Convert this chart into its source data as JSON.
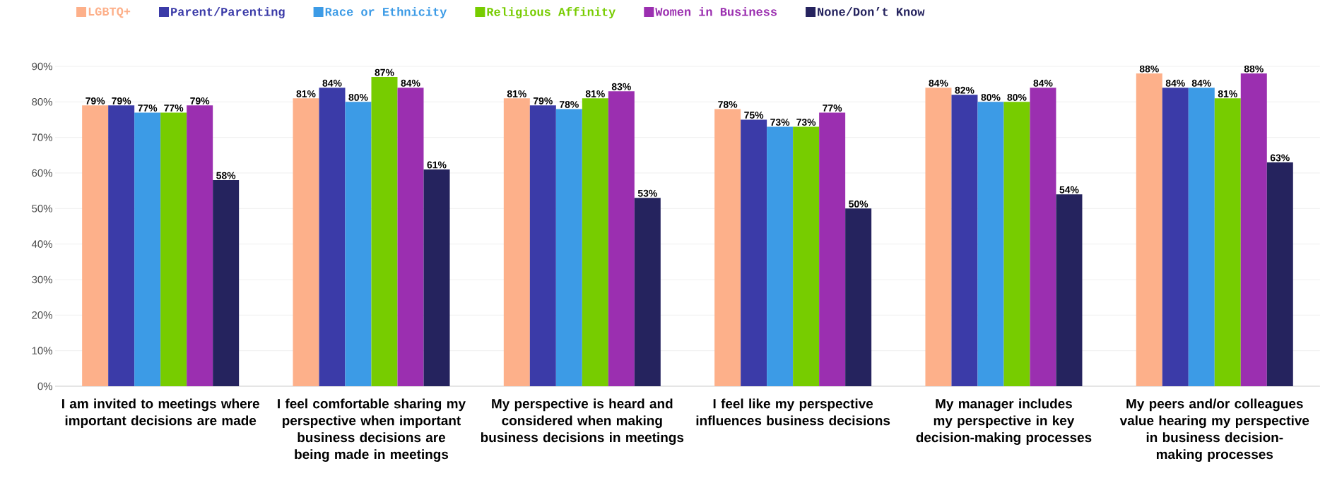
{
  "chart_data": {
    "type": "bar",
    "categories": [
      "I am invited to meetings where important decisions are made",
      "I feel comfortable sharing my perspective when important business decisions are being made in meetings",
      "My perspective is heard and considered when making business decisions in meetings",
      "I feel like my perspective influences business decisions",
      "My manager includes my perspective in key decision-making processes",
      "My peers and/or colleagues value hearing my perspective in business decision-making processes"
    ],
    "series": [
      {
        "name": "LGBTQ+",
        "color": "#fdb08a",
        "values": [
          79,
          81,
          81,
          78,
          84,
          88
        ],
        "value_labels": [
          "79%",
          "81%",
          "81%",
          "78%",
          "84%",
          "88%"
        ]
      },
      {
        "name": "Parent/Parenting",
        "color": "#3b3ba8",
        "values": [
          79,
          84,
          79,
          75,
          82,
          84
        ],
        "value_labels": [
          "79%",
          "84%",
          "79%",
          "75%",
          "82%",
          "84%"
        ]
      },
      {
        "name": "Race or Ethnicity",
        "color": "#3c9be6",
        "values": [
          77,
          80,
          78,
          73,
          80,
          84
        ],
        "value_labels": [
          "77%",
          "80%",
          "78%",
          "73%",
          "80%",
          "84%"
        ]
      },
      {
        "name": "Religious Affinity",
        "color": "#77cc00",
        "values": [
          77,
          87,
          81,
          73,
          80,
          81
        ],
        "value_labels": [
          "77%",
          "87%",
          "81%",
          "73%",
          "80%",
          "81%"
        ]
      },
      {
        "name": "Women in Business",
        "color": "#9b2fb0",
        "values": [
          79,
          84,
          83,
          77,
          84,
          88
        ],
        "value_labels": [
          "79%",
          "84%",
          "83%",
          "77%",
          "84%",
          "88%"
        ]
      },
      {
        "name": "None/Don’t Know",
        "color": "#25235e",
        "values": [
          58,
          61,
          53,
          50,
          54,
          63
        ],
        "value_labels": [
          "58%",
          "61%",
          "53%",
          "50%",
          "54%",
          "63%"
        ]
      }
    ],
    "ylim": [
      0,
      90
    ],
    "yticks": [
      {
        "value": 0,
        "label": "0%"
      },
      {
        "value": 10,
        "label": "10%"
      },
      {
        "value": 20,
        "label": "20%"
      },
      {
        "value": 30,
        "label": "30%"
      },
      {
        "value": 40,
        "label": "40%"
      },
      {
        "value": 50,
        "label": "50%"
      },
      {
        "value": 60,
        "label": "60%"
      },
      {
        "value": 70,
        "label": "70%"
      },
      {
        "value": 80,
        "label": "80%"
      },
      {
        "value": 90,
        "label": "90%"
      }
    ],
    "grid": "y",
    "legend": "top left"
  }
}
